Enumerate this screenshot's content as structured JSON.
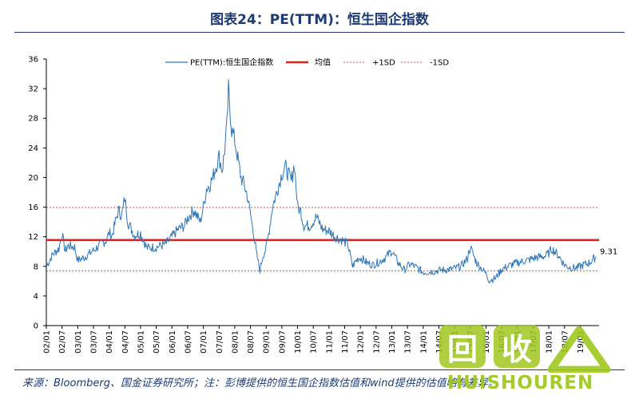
{
  "title": "图表24：PE(TTM)：恒生国企指数",
  "source": "来源：Bloomberg、国金证券研究所；注：彭博提供的恒生国企指数估值和wind提供的估值略有差异。",
  "watermark": {
    "box1": "回",
    "box2": "收",
    "brand": "HUISHOUREN"
  },
  "colors": {
    "series": "#2e75b6",
    "mean": "#e32020",
    "sd": "#c0504d",
    "watermark": "#a0c81e"
  },
  "chart_data": {
    "type": "line",
    "title": "",
    "xlabel": "",
    "ylabel": "",
    "ylim": [
      0,
      36
    ],
    "yticks": [
      0,
      4,
      8,
      12,
      16,
      20,
      24,
      28,
      32,
      36
    ],
    "xlim": [
      2002.0,
      2019.6
    ],
    "xticks": [
      "02/01",
      "02/07",
      "03/01",
      "03/07",
      "04/01",
      "04/07",
      "05/01",
      "05/07",
      "06/01",
      "06/07",
      "07/01",
      "07/07",
      "08/01",
      "08/07",
      "09/01",
      "09/07",
      "10/01",
      "10/07",
      "11/01",
      "11/07",
      "12/01",
      "12/07",
      "13/01",
      "13/07",
      "14/01",
      "14/07",
      "15/01",
      "15/07",
      "16/01",
      "16/07",
      "17/01",
      "17/07",
      "18/01",
      "18/07",
      "19/01"
    ],
    "grid": false,
    "legend_position": "top",
    "series": [
      {
        "name": "PE(TTM):恒生国企指数",
        "style": "line",
        "x": [
          2002.0,
          2002.2,
          2002.4,
          2002.5,
          2002.6,
          2002.7,
          2002.9,
          2003.0,
          2003.2,
          2003.4,
          2003.6,
          2003.8,
          2003.9,
          2004.0,
          2004.1,
          2004.2,
          2004.3,
          2004.4,
          2004.5,
          2004.6,
          2004.8,
          2005.0,
          2005.2,
          2005.5,
          2005.8,
          2006.0,
          2006.2,
          2006.4,
          2006.5,
          2006.7,
          2006.9,
          2007.0,
          2007.1,
          2007.2,
          2007.3,
          2007.4,
          2007.5,
          2007.6,
          2007.7,
          2007.75,
          2007.8,
          2007.9,
          2008.0,
          2008.1,
          2008.2,
          2008.3,
          2008.4,
          2008.5,
          2008.6,
          2008.7,
          2008.8,
          2008.85,
          2008.9,
          2009.0,
          2009.1,
          2009.2,
          2009.3,
          2009.4,
          2009.5,
          2009.6,
          2009.7,
          2009.8,
          2009.9,
          2010.0,
          2010.1,
          2010.2,
          2010.4,
          2010.6,
          2010.8,
          2011.0,
          2011.2,
          2011.4,
          2011.6,
          2011.75,
          2011.9,
          2012.0,
          2012.2,
          2012.4,
          2012.6,
          2012.8,
          2013.0,
          2013.2,
          2013.4,
          2013.5,
          2013.6,
          2013.8,
          2014.0,
          2014.3,
          2014.6,
          2014.9,
          2015.2,
          2015.4,
          2015.5,
          2015.6,
          2015.7,
          2015.9,
          2016.0,
          2016.1,
          2016.3,
          2016.5,
          2016.8,
          2017.0,
          2017.3,
          2017.6,
          2017.9,
          2018.0,
          2018.1,
          2018.3,
          2018.5,
          2018.7,
          2018.9,
          2019.1,
          2019.3,
          2019.5
        ],
        "y": [
          8.0,
          9.6,
          10.4,
          12.4,
          10.1,
          10.8,
          10.6,
          8.8,
          9.2,
          9.8,
          10.5,
          11.2,
          11.5,
          12.5,
          12.2,
          14.0,
          15.6,
          14.8,
          17.2,
          14.0,
          12.2,
          12.5,
          10.5,
          10.6,
          11.0,
          12.0,
          13.0,
          13.5,
          14.5,
          15.6,
          14.0,
          16.0,
          18.5,
          19.0,
          20.0,
          21.5,
          22.8,
          21.0,
          24.5,
          27.0,
          31.8,
          26.5,
          25.0,
          22.5,
          20.0,
          19.0,
          17.5,
          15.0,
          12.5,
          9.5,
          7.5,
          8.5,
          9.5,
          10.5,
          13.0,
          16.0,
          17.5,
          19.0,
          20.5,
          21.5,
          20.5,
          19.5,
          21.8,
          16.0,
          15.5,
          13.5,
          13.5,
          14.7,
          13.0,
          12.8,
          12.0,
          11.6,
          11.0,
          8.0,
          9.0,
          9.2,
          8.5,
          8.2,
          8.6,
          9.2,
          10.1,
          8.5,
          7.5,
          8.0,
          8.3,
          7.8,
          7.2,
          7.3,
          7.5,
          7.6,
          8.0,
          9.0,
          10.6,
          9.5,
          8.5,
          7.5,
          7.0,
          6.1,
          6.4,
          7.6,
          8.2,
          8.5,
          8.8,
          9.2,
          9.4,
          9.8,
          10.4,
          9.5,
          8.2,
          7.8,
          7.8,
          8.2,
          8.5,
          9.31
        ]
      },
      {
        "name": "均值",
        "style": "mean",
        "value": 11.55
      },
      {
        "name": "+1SD",
        "style": "sd",
        "value": 15.95
      },
      {
        "name": "-1SD",
        "style": "sd",
        "value": 7.4
      }
    ],
    "annotations": [
      {
        "text": "9.31"
      }
    ]
  }
}
